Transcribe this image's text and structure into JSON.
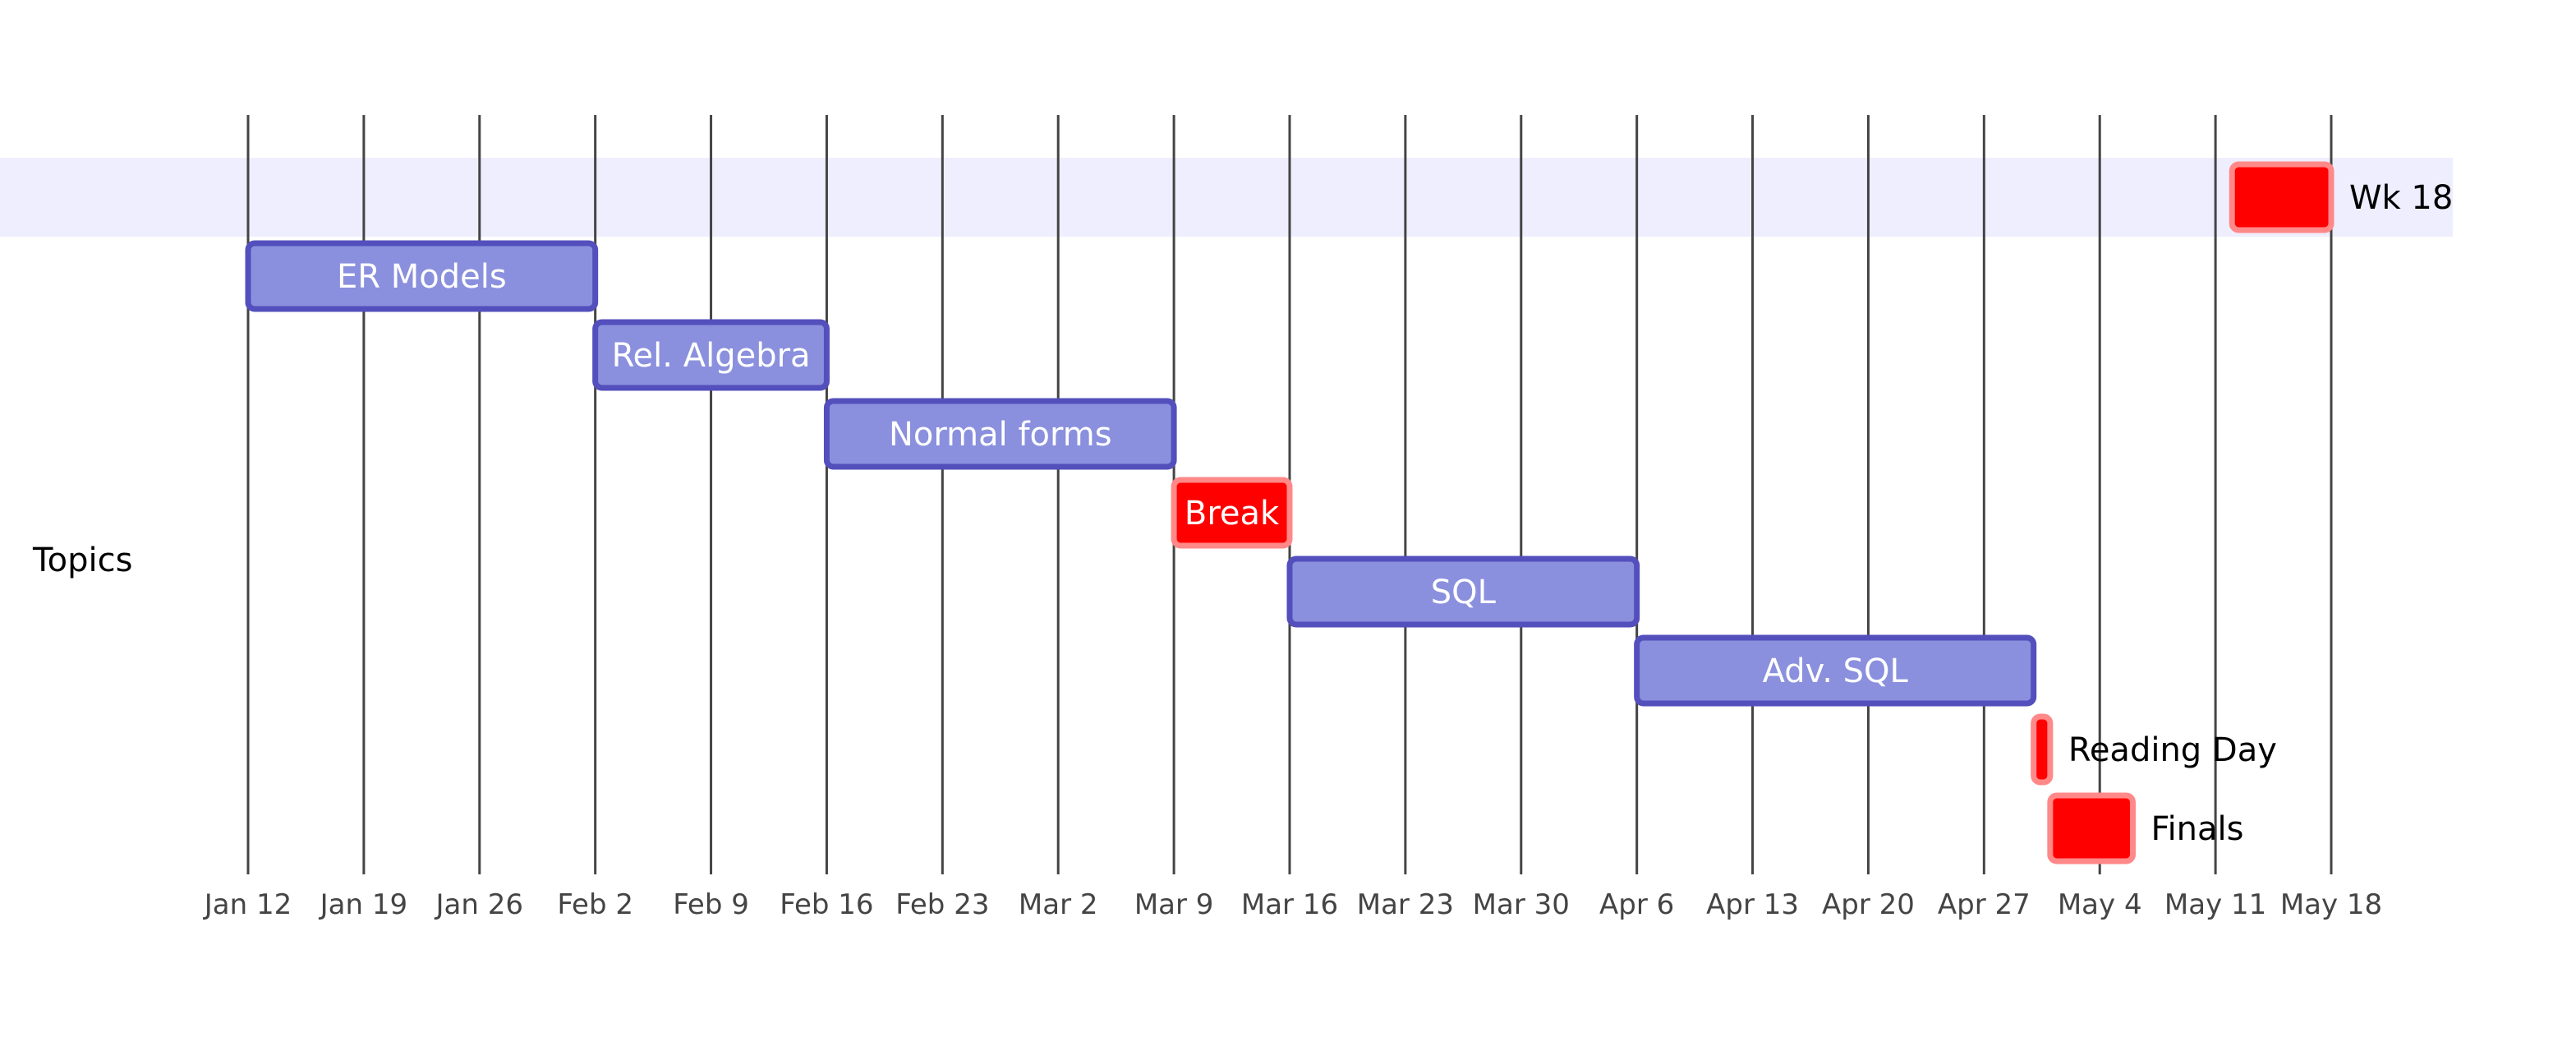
{
  "chart_data": {
    "type": "gantt",
    "title": "",
    "section": "Topics",
    "x_ticks": [
      "Jan 12",
      "Jan 19",
      "Jan 26",
      "Feb 2",
      "Feb 9",
      "Feb 16",
      "Feb 23",
      "Mar 2",
      "Mar 9",
      "Mar 16",
      "Mar 23",
      "Mar 30",
      "Apr 6",
      "Apr 13",
      "Apr 20",
      "Apr 27",
      "May 4",
      "May 11",
      "May 18"
    ],
    "x_range": [
      "2026-01-12",
      "2026-05-18"
    ],
    "tasks": [
      {
        "label": "Wk 18",
        "start": "2026-05-12",
        "end": "2026-05-18",
        "kind": "critical",
        "label_position": "outside"
      },
      {
        "label": "ER Models",
        "start": "2026-01-12",
        "end": "2026-02-02",
        "kind": "normal",
        "label_position": "inside"
      },
      {
        "label": "Rel. Algebra",
        "start": "2026-02-02",
        "end": "2026-02-16",
        "kind": "normal",
        "label_position": "inside"
      },
      {
        "label": "Normal forms",
        "start": "2026-02-16",
        "end": "2026-03-09",
        "kind": "normal",
        "label_position": "inside"
      },
      {
        "label": "Break",
        "start": "2026-03-09",
        "end": "2026-03-16",
        "kind": "critical",
        "label_position": "inside"
      },
      {
        "label": "SQL",
        "start": "2026-03-16",
        "end": "2026-04-06",
        "kind": "normal",
        "label_position": "inside"
      },
      {
        "label": "Adv. SQL",
        "start": "2026-04-06",
        "end": "2026-04-30",
        "kind": "normal",
        "label_position": "inside"
      },
      {
        "label": "Reading Day",
        "start": "2026-04-30",
        "end": "2026-05-01",
        "kind": "critical",
        "label_position": "outside"
      },
      {
        "label": "Finals",
        "start": "2026-05-01",
        "end": "2026-05-06",
        "kind": "critical",
        "label_position": "outside"
      }
    ],
    "colors": {
      "section_band": "#eeeeff",
      "task_fill": "#8a90dd",
      "task_stroke": "#534fbc",
      "crit_fill": "#ff0000",
      "crit_stroke": "#ff8888",
      "grid": "#444444",
      "tick_text": "#444444",
      "label_text": "#000000",
      "inside_text": "#ffffff"
    },
    "grid": true
  }
}
